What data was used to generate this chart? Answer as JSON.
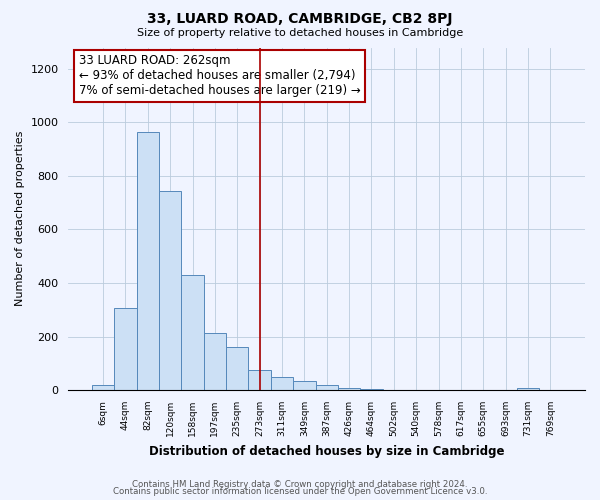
{
  "title": "33, LUARD ROAD, CAMBRIDGE, CB2 8PJ",
  "subtitle": "Size of property relative to detached houses in Cambridge",
  "xlabel": "Distribution of detached houses by size in Cambridge",
  "ylabel": "Number of detached properties",
  "bar_labels": [
    "6sqm",
    "44sqm",
    "82sqm",
    "120sqm",
    "158sqm",
    "197sqm",
    "235sqm",
    "273sqm",
    "311sqm",
    "349sqm",
    "387sqm",
    "426sqm",
    "464sqm",
    "502sqm",
    "540sqm",
    "578sqm",
    "617sqm",
    "655sqm",
    "693sqm",
    "731sqm",
    "769sqm"
  ],
  "bar_values": [
    20,
    305,
    965,
    745,
    430,
    215,
    160,
    75,
    50,
    33,
    18,
    8,
    3,
    0,
    0,
    0,
    0,
    0,
    0,
    8,
    0
  ],
  "bar_color": "#cce0f5",
  "bar_edge_color": "#5588bb",
  "vline_x_idx": 7,
  "vline_color": "#aa0000",
  "annotation_line1": "33 LUARD ROAD: 262sqm",
  "annotation_line2": "← 93% of detached houses are smaller (2,794)",
  "annotation_line3": "7% of semi-detached houses are larger (219) →",
  "annotation_box_color": "#ffffff",
  "annotation_box_edge_color": "#aa0000",
  "ylim": [
    0,
    1280
  ],
  "yticks": [
    0,
    200,
    400,
    600,
    800,
    1000,
    1200
  ],
  "footer1": "Contains HM Land Registry data © Crown copyright and database right 2024.",
  "footer2": "Contains public sector information licensed under the Open Government Licence v3.0.",
  "bg_color": "#f0f4ff"
}
